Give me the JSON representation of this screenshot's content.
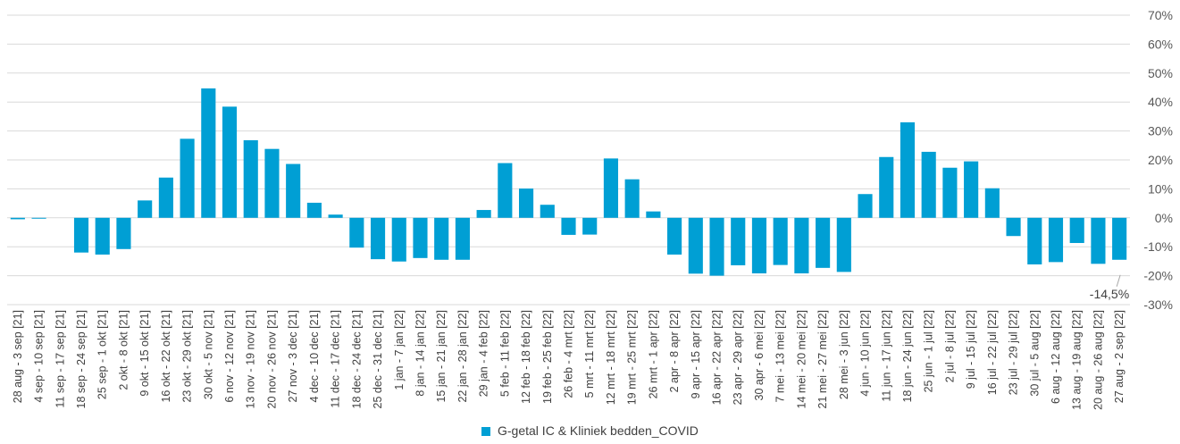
{
  "chart_data": {
    "type": "bar",
    "categories": [
      "28 aug - 3 sep [21]",
      "4 sep - 10 sep [21]",
      "11 sep - 17 sep [21]",
      "18 sep - 24 sep [21]",
      "25 sep - 1 okt [21]",
      "2 okt - 8 okt [21]",
      "9 okt - 15 okt [21]",
      "16 okt - 22 okt [21]",
      "23 okt - 29 okt [21]",
      "30 okt - 5 nov [21]",
      "6 nov - 12 nov [21]",
      "13 nov - 19 nov [21]",
      "20 nov - 26 nov [21]",
      "27 nov - 3 dec [21]",
      "4 dec - 10 dec [21]",
      "11 dec - 17 dec [21]",
      "18 dec - 24 dec [21]",
      "25 dec - 31 dec [21]",
      "1 jan - 7 jan [22]",
      "8 jan - 14 jan [22]",
      "15 jan - 21 jan [22]",
      "22 jan - 28 jan [22]",
      "29 jan - 4 feb [22]",
      "5 feb - 11 feb [22]",
      "12 feb - 18 feb [22]",
      "19 feb - 25 feb [22]",
      "26 feb - 4 mrt [22]",
      "5 mrt - 11 mrt [22]",
      "12 mrt - 18 mrt [22]",
      "19 mrt - 25 mrt [22]",
      "26 mrt - 1 apr [22]",
      "2 apr - 8 apr [22]",
      "9 apr - 15 apr [22]",
      "16 apr - 22 apr [22]",
      "23 apr - 29 apr [22]",
      "30 apr - 6 mei [22]",
      "7 mei - 13 mei [22]",
      "14 mei - 20 mei [22]",
      "21 mei - 27 mei [22]",
      "28 mei - 3 jun [22]",
      "4 jun - 10 jun [22]",
      "11 jun - 17 jun [22]",
      "18 jun - 24 jun [22]",
      "25 jun - 1 jul [22]",
      "2 jul - 8 jul [22]",
      "9 jul - 15 jul [22]",
      "16 jul - 22 jul [22]",
      "23 jul - 29 jul [22]",
      "30 jul - 5 aug [22]",
      "6 aug - 12 aug [22]",
      "13 aug - 19 aug [22]",
      "20 aug - 26 aug [22]",
      "27 aug - 2 sep [22]"
    ],
    "series": [
      {
        "name": "G-getal IC & Kliniek bedden_COVID",
        "color": "#009fd4",
        "values": [
          -0.5,
          -0.3,
          0,
          -12.0,
          -12.7,
          -10.8,
          6.0,
          13.9,
          27.3,
          44.7,
          38.4,
          26.8,
          23.8,
          18.6,
          5.2,
          1.1,
          -10.3,
          -14.3,
          -15.1,
          -13.9,
          -14.5,
          -14.5,
          2.7,
          18.9,
          10.1,
          4.5,
          -5.9,
          -5.8,
          20.5,
          13.3,
          2.2,
          -12.7,
          -19.3,
          -20.0,
          -16.4,
          -19.2,
          -16.3,
          -19.2,
          -17.3,
          -18.7,
          8.2,
          21.0,
          33.0,
          22.8,
          17.3,
          19.5,
          10.2,
          -6.3,
          -16.1,
          -15.3,
          -8.7,
          -15.9,
          -14.5
        ]
      }
    ],
    "ylim": [
      -30,
      70
    ],
    "yticks": [
      "70%",
      "60%",
      "50%",
      "40%",
      "30%",
      "20%",
      "10%",
      "0%",
      "-10%",
      "-20%",
      "-30%"
    ],
    "data_labels": [
      {
        "index": 52,
        "text": "-14,5%"
      }
    ],
    "legend": "bottom",
    "grid": true
  }
}
